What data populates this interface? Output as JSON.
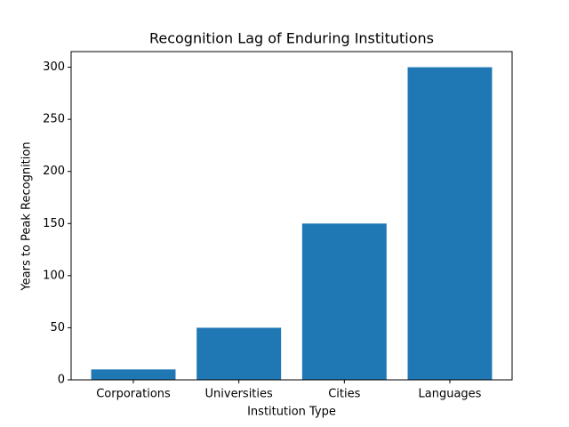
{
  "chart_data": {
    "type": "bar",
    "title": "Recognition Lag of Enduring Institutions",
    "x_label": "Institution Type",
    "y_label": "Years to Peak Recognition",
    "categories": [
      "Corporations",
      "Universities",
      "Cities",
      "Languages"
    ],
    "values": [
      10,
      50,
      150,
      300
    ],
    "color": "#1f77b4",
    "ylim": [
      0,
      315
    ],
    "yticks": [
      0,
      50,
      100,
      150,
      200,
      250,
      300
    ],
    "grid": false
  }
}
